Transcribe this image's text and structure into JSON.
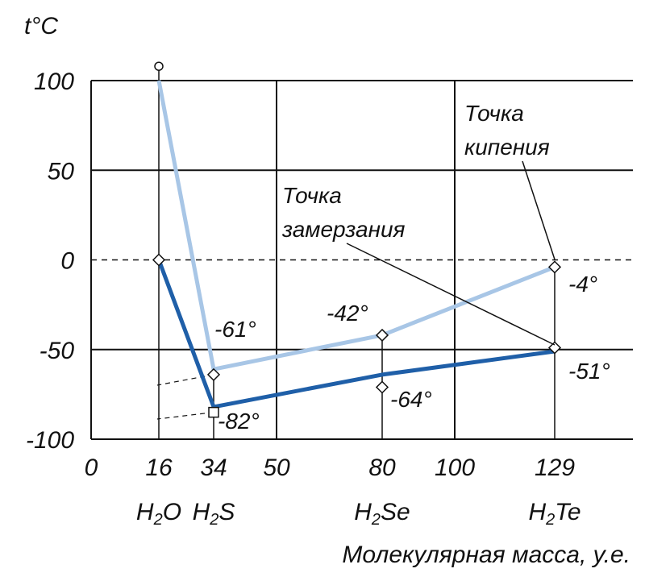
{
  "chart_data": {
    "type": "line",
    "ylabel": "t°C",
    "xlabel": "Молекулярная масса, у.е.",
    "ylim": [
      -100,
      100
    ],
    "xlim": [
      0,
      150
    ],
    "yticks": [
      "100",
      "50",
      "0",
      "-50",
      "-100"
    ],
    "xticks": [
      "0",
      "16",
      "34",
      "50",
      "80",
      "100",
      "129"
    ],
    "compounds": [
      {
        "x": 16,
        "base": "H",
        "sub": "2",
        "rest": "O"
      },
      {
        "x": 34,
        "base": "H",
        "sub": "2",
        "rest": "S"
      },
      {
        "x": 80,
        "base": "H",
        "sub": "2",
        "rest": "Se"
      },
      {
        "x": 129,
        "base": "H",
        "sub": "2",
        "rest": "Te"
      }
    ],
    "series": [
      {
        "name": "Точка кипения",
        "color": "#a8c6e6",
        "x": [
          16,
          34,
          80,
          129
        ],
        "y": [
          100,
          -61,
          -42,
          -4
        ]
      },
      {
        "name": "Точка замерзания",
        "color": "#1f5fa8",
        "x": [
          16,
          34,
          80,
          129
        ],
        "y": [
          0,
          -82,
          -64,
          -51
        ]
      }
    ],
    "value_labels": [
      "-61°",
      "-82°",
      "-42°",
      "-64°",
      "-4°",
      "-51°"
    ],
    "annotations": {
      "boiling_line1": "Точка",
      "boiling_line2": "кипения",
      "freezing_line1": "Точка",
      "freezing_line2": "замерзания"
    },
    "grid": true
  }
}
